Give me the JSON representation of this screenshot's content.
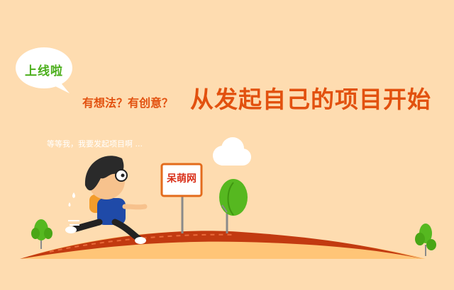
{
  "bubble": {
    "label": "上线啦"
  },
  "tagline": {
    "question": "有想法？有创意？",
    "headline": "从发起自己的项目开始"
  },
  "character": {
    "speech": "等等我，我要发起项目啊  ..."
  },
  "sign": {
    "label": "呆萌网"
  },
  "colors": {
    "background": "#fedcb0",
    "accent_orange": "#e2510f",
    "green": "#4caf1d",
    "hill": "#c0360f"
  }
}
